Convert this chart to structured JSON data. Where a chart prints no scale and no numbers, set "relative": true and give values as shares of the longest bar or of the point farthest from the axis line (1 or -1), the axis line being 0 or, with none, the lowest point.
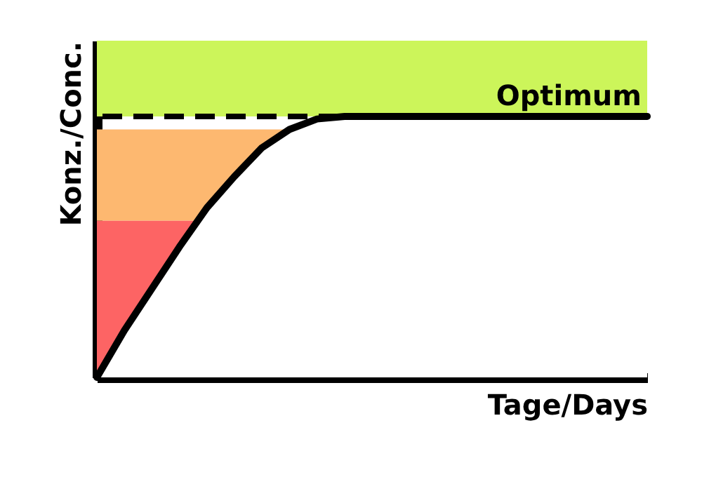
{
  "chart_data": {
    "type": "line",
    "relative": true,
    "xlabel": "Tage/Days",
    "ylabel": "Konz./Conc.",
    "categories": [
      null,
      null,
      null,
      null,
      null,
      null,
      null,
      null,
      null,
      null,
      null,
      null,
      null,
      null,
      null,
      null,
      null,
      null,
      null,
      null,
      null
    ],
    "series": [
      {
        "color": "#000000",
        "values": [
          0,
          0.18,
          0.34,
          0.5,
          0.65,
          0.77,
          0.88,
          0.95,
          0.99,
          1,
          1,
          1,
          1,
          1,
          1,
          1,
          1,
          1,
          1,
          1,
          1
        ]
      }
    ],
    "ref_lines": [
      {
        "axis": "y",
        "value": 1,
        "label": "Optimum",
        "line_style": "dashed",
        "color": "#000000"
      }
    ],
    "bands": [
      {
        "axis": "y",
        "from": 1,
        "to": 1.29,
        "color": "#ccf55a"
      },
      {
        "axis": "y",
        "from": 0.6,
        "to": 0.95,
        "color": "#fdb870"
      },
      {
        "axis": "y",
        "from": 0,
        "to": 0.6,
        "color": "#fd6464"
      }
    ],
    "marker": "none",
    "line_style": "solid"
  }
}
